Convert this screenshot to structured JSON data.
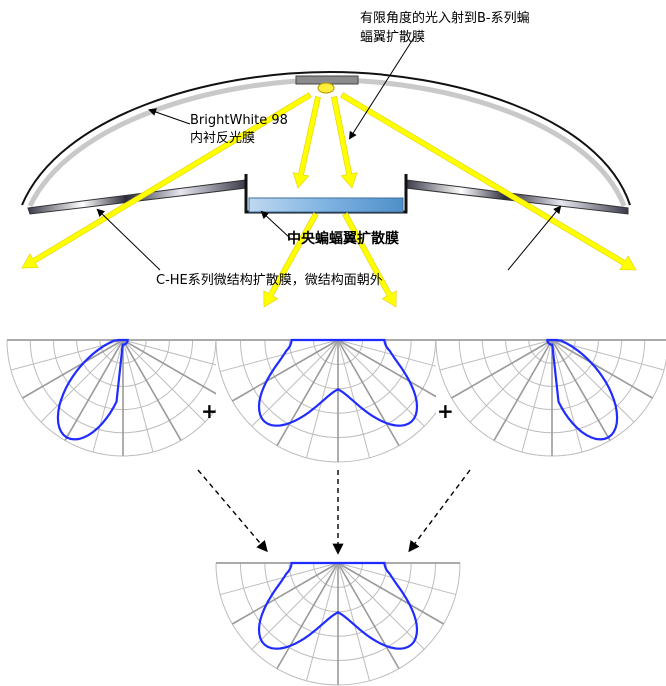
{
  "labels": {
    "top_line1": "有限角度的光入射到B-系列蝙",
    "top_line2": "蝠翼扩散膜",
    "liner_line1": "BrightWhite 98",
    "liner_line2": "内衬反光膜",
    "center_film": "中央蝙蝠翼扩散膜",
    "side_film": "C-HE系列微结构扩散膜，微结构面朝外"
  },
  "operators": {
    "plus_1": "+",
    "plus_2": "+"
  },
  "colors": {
    "light_ray": "#ffff00",
    "light_ray_edge": "#e2cf00",
    "distribution_curve": "#1f2bff",
    "center_film_fill": "#7fb3e2",
    "polar_grid": "#bdbdbd",
    "polar_spoke": "#9a9a9a"
  },
  "icons": [
    "light-source-icon",
    "arrow-down-icon"
  ]
}
